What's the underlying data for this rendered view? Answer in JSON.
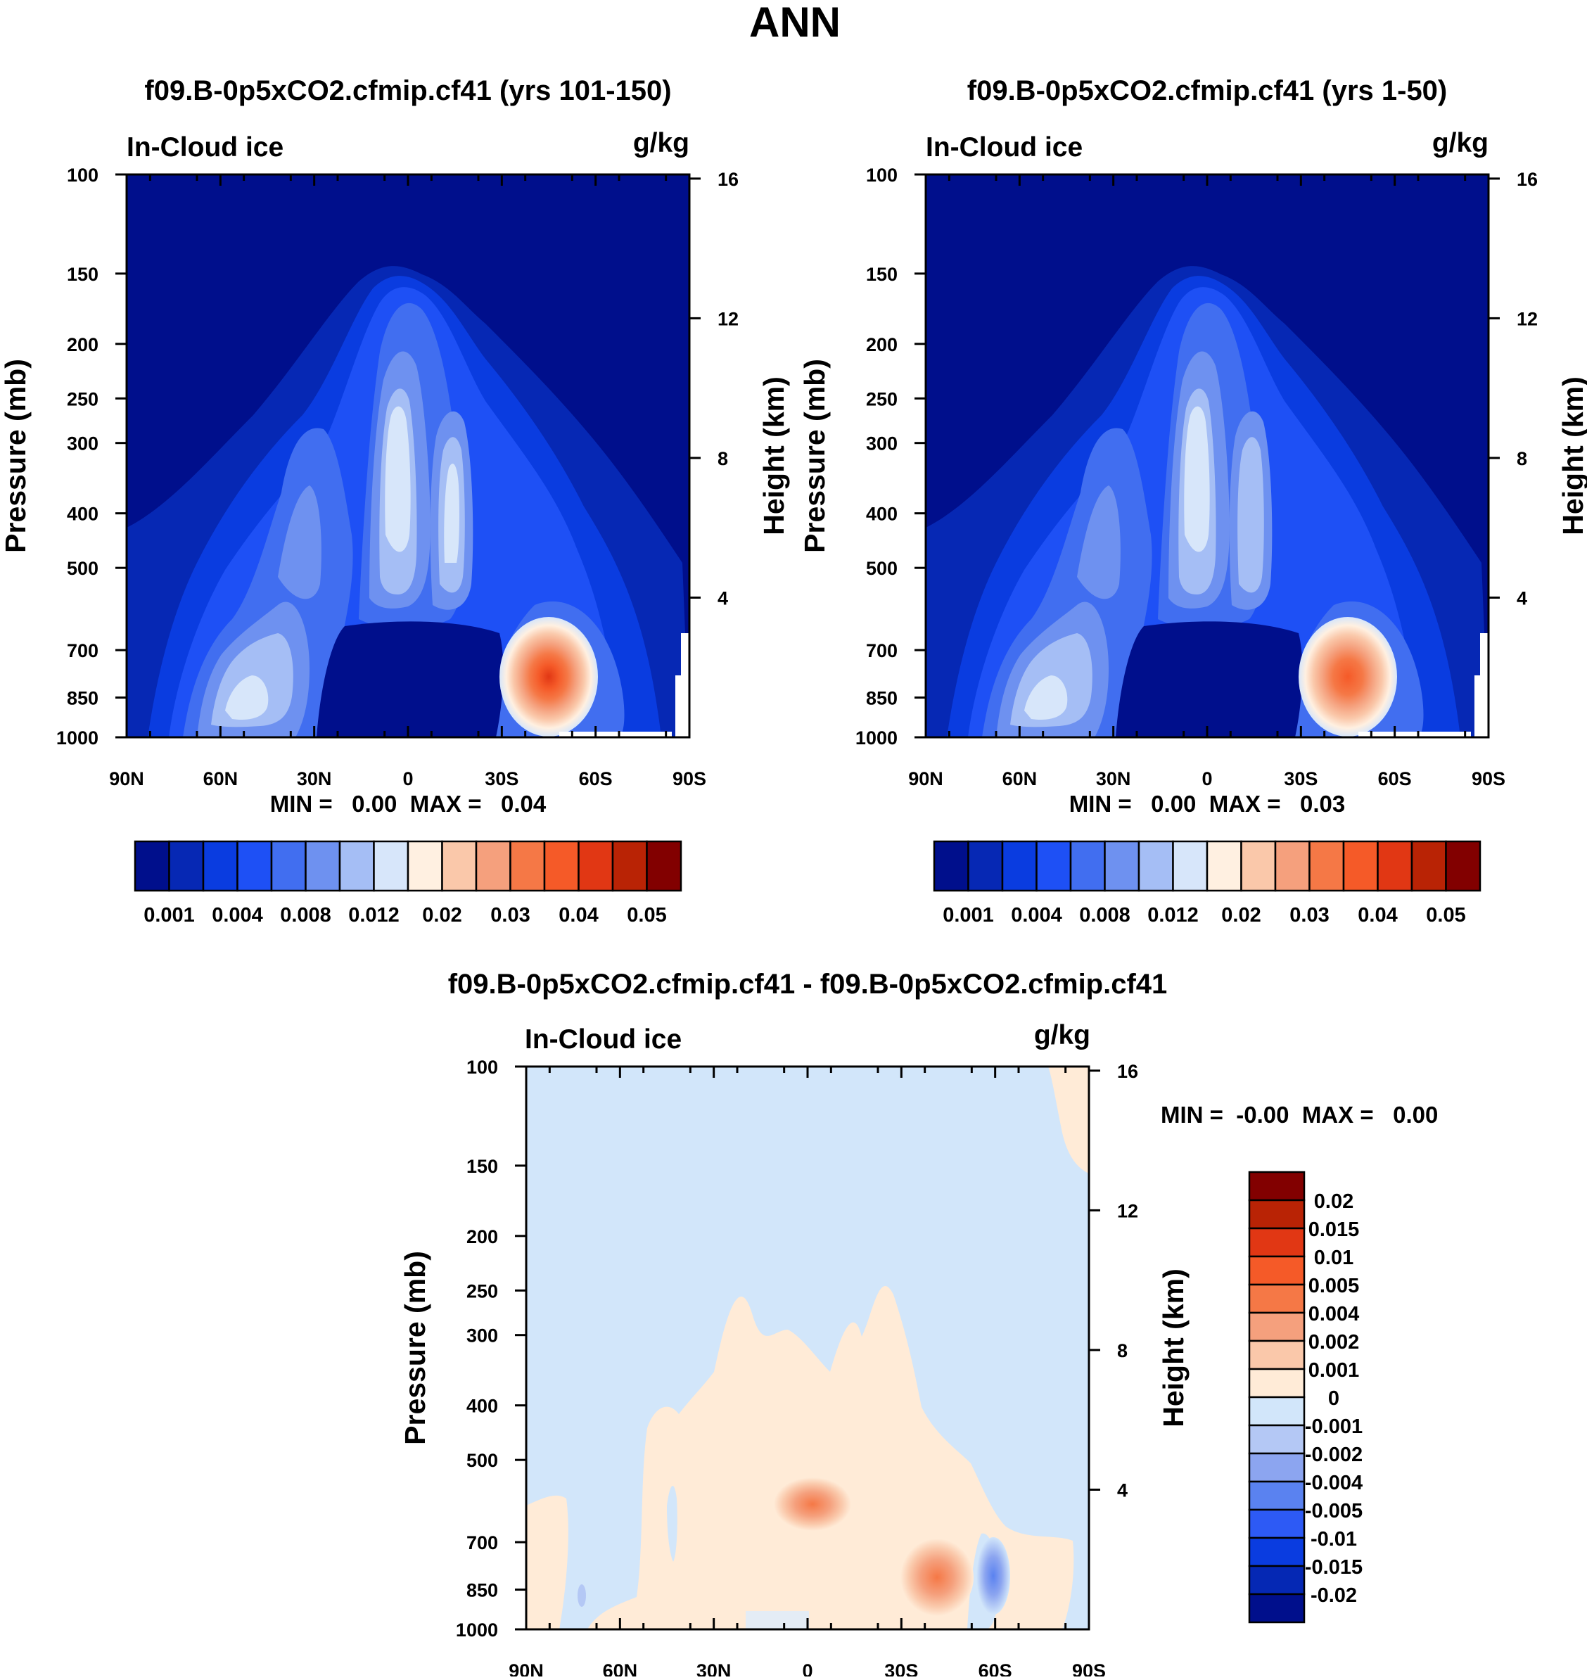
{
  "title": "ANN",
  "colors": {
    "seq": [
      "#000f8c",
      "#0628b4",
      "#0a3ce0",
      "#1e50f5",
      "#416ef0",
      "#6e91f0",
      "#a5bef5",
      "#d7e6fa",
      "#fff0e1",
      "#fac8aa",
      "#f5a07d",
      "#f57846",
      "#f55a28",
      "#e13714",
      "#b92305",
      "#820000"
    ],
    "diff": [
      "#820000",
      "#b92305",
      "#e13714",
      "#f55a28",
      "#f57846",
      "#f5a07d",
      "#fac8aa",
      "#ffebd7",
      "#d2e6fa",
      "#b4c8f5",
      "#8ca5f0",
      "#5a82f0",
      "#2d5af5",
      "#0a3ce0",
      "#0528b4",
      "#000f8c"
    ]
  },
  "chart_data": [
    {
      "type": "contour",
      "title": "f09.B-0p5xCO2.cfmip.cf41 (yrs 101-150)",
      "left_label": "In-Cloud ice",
      "units": "g/kg",
      "xlabel": "",
      "ylabel": "Pressure (mb)",
      "ylabel_right": "Height (km)",
      "x_ticks": [
        "90N",
        "60N",
        "30N",
        "0",
        "30S",
        "60S",
        "90S"
      ],
      "y_ticks": [
        "100",
        "150",
        "200",
        "250",
        "300",
        "400",
        "500",
        "700",
        "850",
        "1000"
      ],
      "y_right_ticks": [
        "16",
        "12",
        "8",
        "4"
      ],
      "stats_text": "MIN =   0.00  MAX =   0.04",
      "min": 0.0,
      "max": 0.04,
      "colorbar_labels": [
        "0.001",
        "0.004",
        "0.008",
        "0.012",
        "0.02",
        "0.03",
        "0.04",
        "0.05"
      ]
    },
    {
      "type": "contour",
      "title": "f09.B-0p5xCO2.cfmip.cf41 (yrs 1-50)",
      "left_label": "In-Cloud ice",
      "units": "g/kg",
      "xlabel": "",
      "ylabel": "Pressure (mb)",
      "ylabel_right": "Height (km)",
      "x_ticks": [
        "90N",
        "60N",
        "30N",
        "0",
        "30S",
        "60S",
        "90S"
      ],
      "y_ticks": [
        "100",
        "150",
        "200",
        "250",
        "300",
        "400",
        "500",
        "700",
        "850",
        "1000"
      ],
      "y_right_ticks": [
        "16",
        "12",
        "8",
        "4"
      ],
      "stats_text": "MIN =   0.00  MAX =   0.03",
      "min": 0.0,
      "max": 0.03,
      "colorbar_labels": [
        "0.001",
        "0.004",
        "0.008",
        "0.012",
        "0.02",
        "0.03",
        "0.04",
        "0.05"
      ]
    },
    {
      "type": "contour",
      "title": "f09.B-0p5xCO2.cfmip.cf41 - f09.B-0p5xCO2.cfmip.cf41",
      "left_label": "In-Cloud ice",
      "units": "g/kg",
      "xlabel": "",
      "ylabel": "Pressure (mb)",
      "ylabel_right": "Height (km)",
      "x_ticks": [
        "90N",
        "60N",
        "30N",
        "0",
        "30S",
        "60S",
        "90S"
      ],
      "y_ticks": [
        "100",
        "150",
        "200",
        "250",
        "300",
        "400",
        "500",
        "700",
        "850",
        "1000"
      ],
      "y_right_ticks": [
        "16",
        "12",
        "8",
        "4"
      ],
      "stats_text": "MIN =  -0.00  MAX =   0.00",
      "min": -0.0,
      "max": 0.0,
      "colorbar_labels": [
        "0.02",
        "0.015",
        "0.01",
        "0.005",
        "0.004",
        "0.002",
        "0.001",
        "0",
        "-0.001",
        "-0.002",
        "-0.004",
        "-0.005",
        "-0.01",
        "-0.015",
        "-0.02"
      ]
    }
  ]
}
